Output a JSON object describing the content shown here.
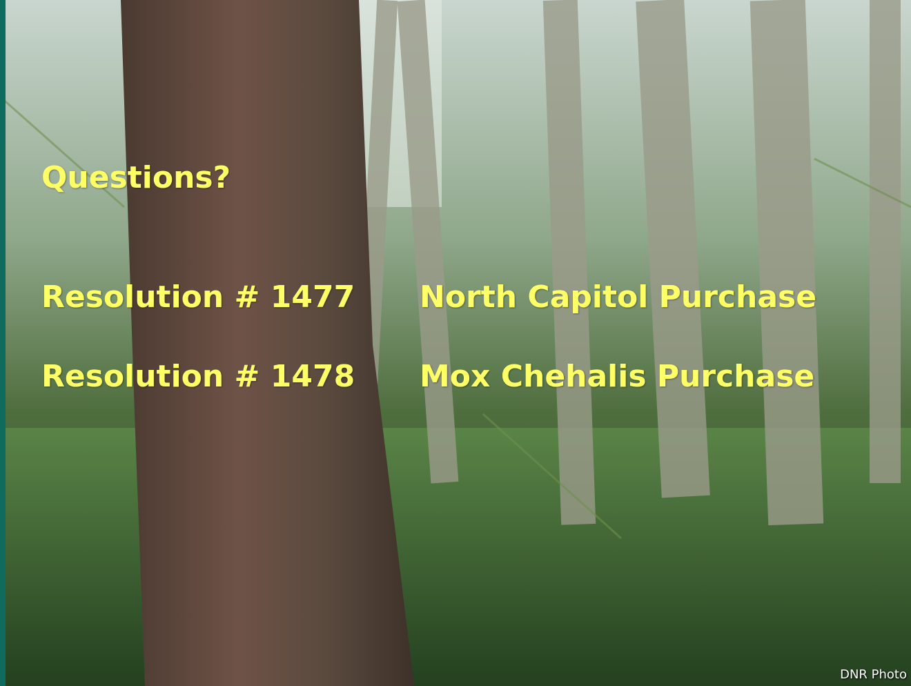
{
  "slide": {
    "title": "Questions?",
    "resolutions": [
      {
        "number": "Resolution # 1477",
        "name": "North Capitol Purchase"
      },
      {
        "number": "Resolution # 1478",
        "name": "Mox Chehalis Purchase"
      }
    ],
    "photo_credit": "DNR Photo"
  }
}
